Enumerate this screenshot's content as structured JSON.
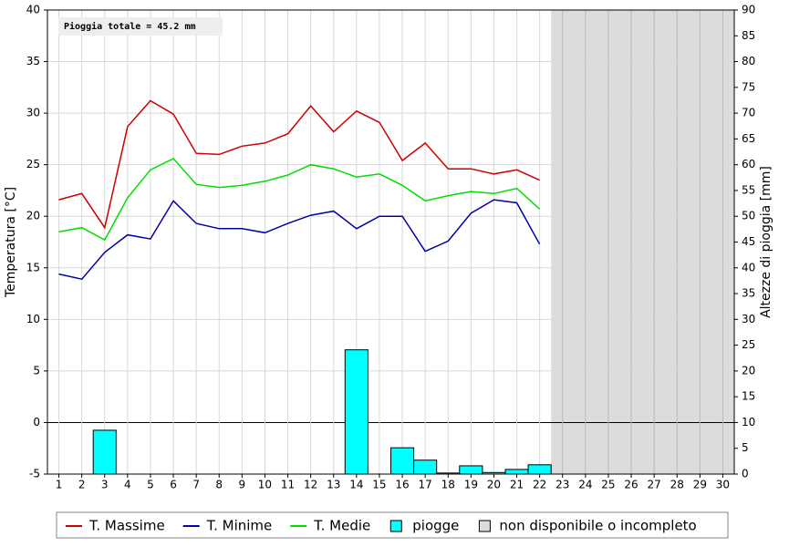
{
  "chart_data": {
    "type": "bar_line",
    "annotation": "Pioggia totale = 45.2 mm",
    "y_label": "Temperatura [°C]",
    "y2_label": "Altezze di pioggia [mm]",
    "categories": [
      "1",
      "2",
      "3",
      "4",
      "5",
      "6",
      "7",
      "8",
      "9",
      "10",
      "11",
      "12",
      "13",
      "14",
      "15",
      "16",
      "17",
      "18",
      "19",
      "20",
      "21",
      "22",
      "23",
      "24",
      "25",
      "26",
      "27",
      "28",
      "29",
      "30"
    ],
    "series": [
      {
        "name": "T. Massime",
        "type": "line",
        "color": "#cc0000",
        "values": [
          21.6,
          22.2,
          18.9,
          28.7,
          31.2,
          29.9,
          26.1,
          26.0,
          26.8,
          27.1,
          28.0,
          30.7,
          28.2,
          30.2,
          29.1,
          25.4,
          27.1,
          24.6,
          24.6,
          24.1,
          24.5,
          23.5,
          null,
          null,
          null,
          null,
          null,
          null,
          null,
          null
        ]
      },
      {
        "name": "T. Minime",
        "type": "line",
        "color": "#0000aa",
        "values": [
          14.4,
          13.9,
          16.5,
          18.2,
          17.8,
          21.5,
          19.3,
          18.8,
          18.8,
          18.4,
          19.3,
          20.1,
          20.5,
          18.8,
          20.0,
          20.0,
          16.6,
          17.6,
          20.3,
          21.6,
          21.3,
          17.3,
          null,
          null,
          null,
          null,
          null,
          null,
          null,
          null
        ]
      },
      {
        "name": "T. Medie",
        "type": "line",
        "color": "#00dd00",
        "values": [
          18.5,
          18.9,
          17.7,
          21.8,
          24.5,
          25.6,
          23.1,
          22.8,
          23.0,
          23.4,
          24.0,
          25.0,
          24.6,
          23.8,
          24.1,
          23.0,
          21.5,
          22.0,
          22.4,
          22.2,
          22.7,
          20.7,
          null,
          null,
          null,
          null,
          null,
          null,
          null,
          null
        ]
      },
      {
        "name": "piogge",
        "type": "bar",
        "axis": "y2",
        "color": "#00ffff",
        "values": [
          0,
          0,
          8.5,
          0,
          0,
          0,
          0,
          0,
          0,
          0,
          0,
          0,
          0,
          24.1,
          0,
          5.1,
          2.7,
          0.2,
          1.6,
          0.3,
          0.9,
          1.8,
          null,
          null,
          null,
          null,
          null,
          null,
          null,
          null
        ]
      }
    ],
    "unavailable": {
      "name": "non disponibile o incompleto",
      "color": "#dcdcdc"
    },
    "ylim": [
      -5,
      40
    ],
    "yticks": [
      -5,
      0,
      5,
      10,
      15,
      20,
      25,
      30,
      35,
      40
    ],
    "y2lim": [
      0,
      90
    ],
    "y2ticks": [
      0,
      5,
      10,
      15,
      20,
      25,
      30,
      35,
      40,
      45,
      50,
      55,
      60,
      65,
      70,
      75,
      80,
      85,
      90
    ],
    "grid": true
  }
}
